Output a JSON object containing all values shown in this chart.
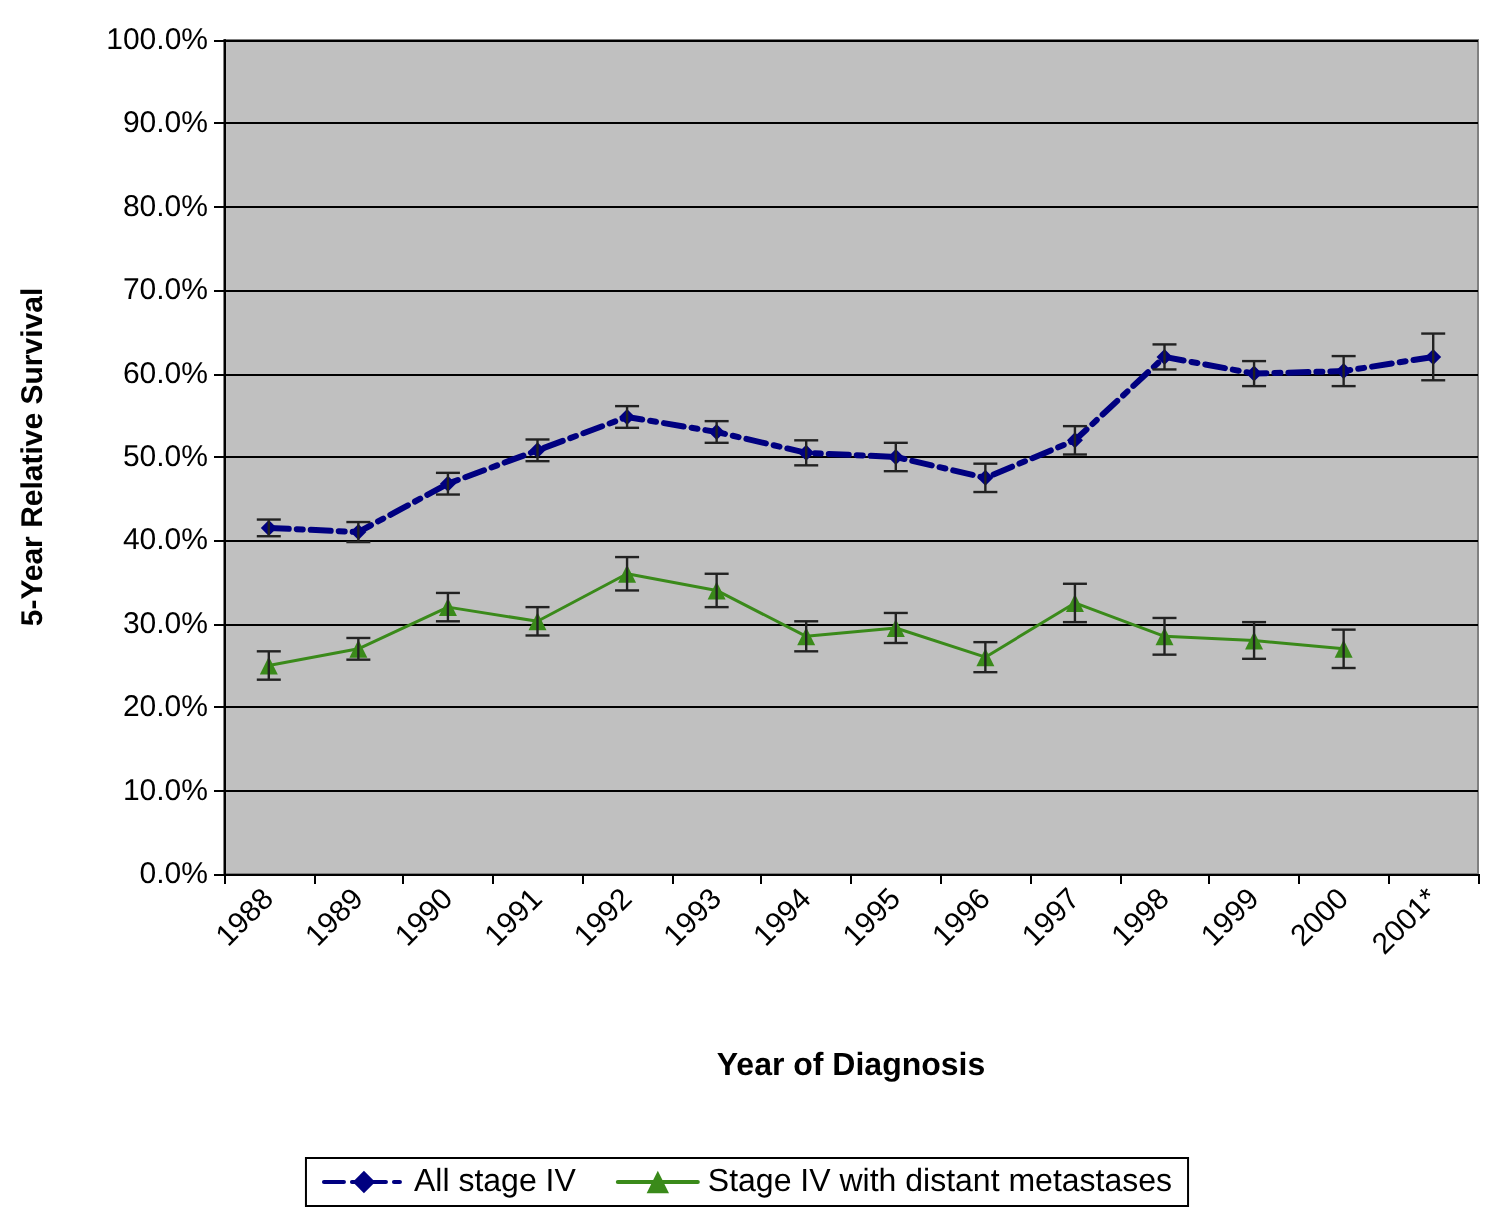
{
  "chart_data": {
    "type": "line",
    "xlabel": "Year of Diagnosis",
    "ylabel": "5-Year Relative Survival",
    "categories": [
      "1988",
      "1989",
      "1990",
      "1991",
      "1992",
      "1993",
      "1994",
      "1995",
      "1996",
      "1997",
      "1998",
      "1999",
      "2000",
      "2001*"
    ],
    "series": [
      {
        "name": "All stage IV",
        "color": "#000080",
        "marker": "diamond",
        "line_style": "dashed",
        "values": [
          41.5,
          41,
          46.8,
          50.8,
          54.8,
          53,
          50.5,
          50,
          47.5,
          52,
          62,
          60,
          60.3,
          62
        ],
        "errors": [
          1,
          1.2,
          1.3,
          1.3,
          1.3,
          1.3,
          1.5,
          1.7,
          1.7,
          1.7,
          1.5,
          1.5,
          1.8,
          2.8
        ]
      },
      {
        "name": "Stage IV with distant metastases",
        "color": "#3a8a1a",
        "marker": "triangle",
        "line_style": "solid",
        "values": [
          25,
          27,
          32,
          30.3,
          36,
          34,
          28.5,
          29.5,
          26,
          32.5,
          28.5,
          28,
          27,
          null
        ],
        "errors": [
          1.7,
          1.3,
          1.7,
          1.7,
          2,
          2,
          1.8,
          1.8,
          1.8,
          2.3,
          2.2,
          2.2,
          2.3,
          null
        ]
      }
    ],
    "ylim": [
      0,
      100
    ],
    "yticks": [
      {
        "value": 0,
        "label": "0.0%"
      },
      {
        "value": 10,
        "label": "10.0%"
      },
      {
        "value": 20,
        "label": "20.0%"
      },
      {
        "value": 30,
        "label": "30.0%"
      },
      {
        "value": 40,
        "label": "40.0%"
      },
      {
        "value": 50,
        "label": "50.0%"
      },
      {
        "value": 60,
        "label": "60.0%"
      },
      {
        "value": 70,
        "label": "70.0%"
      },
      {
        "value": 80,
        "label": "80.0%"
      },
      {
        "value": 90,
        "label": "90.0%"
      },
      {
        "value": 100,
        "label": "100.0%"
      }
    ],
    "grid": "y",
    "legend": "bottom"
  }
}
